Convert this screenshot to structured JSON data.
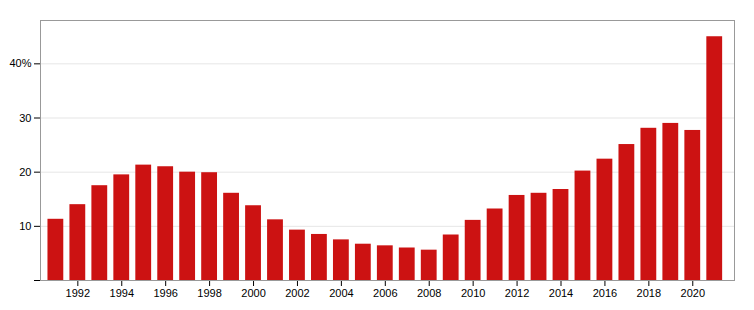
{
  "chart_data": {
    "type": "bar",
    "x": [
      1991,
      1992,
      1993,
      1994,
      1995,
      1996,
      1997,
      1998,
      1999,
      2000,
      2001,
      2002,
      2003,
      2004,
      2005,
      2006,
      2007,
      2008,
      2009,
      2010,
      2011,
      2012,
      2013,
      2014,
      2015,
      2016,
      2017,
      2018,
      2019,
      2020,
      2021
    ],
    "values": [
      11.3,
      14.0,
      17.5,
      19.5,
      21.3,
      21.0,
      20.0,
      19.9,
      16.1,
      13.8,
      11.2,
      9.3,
      8.5,
      7.5,
      6.7,
      6.4,
      6.0,
      5.6,
      8.4,
      11.1,
      13.2,
      15.7,
      16.1,
      16.8,
      20.2,
      22.4,
      25.1,
      28.1,
      29.0,
      27.7,
      45.0
    ],
    "color": "#cc1212",
    "xlim": [
      1990.3,
      2021.9
    ],
    "xticks": [
      1992,
      1994,
      1996,
      1998,
      2000,
      2002,
      2004,
      2006,
      2008,
      2010,
      2012,
      2014,
      2016,
      2018,
      2020
    ],
    "ylim": [
      0,
      48
    ],
    "yticks": [
      {
        "value": 0,
        "label": ""
      },
      10,
      20,
      30,
      {
        "value": 40,
        "label": "40%"
      }
    ],
    "grid": true
  }
}
